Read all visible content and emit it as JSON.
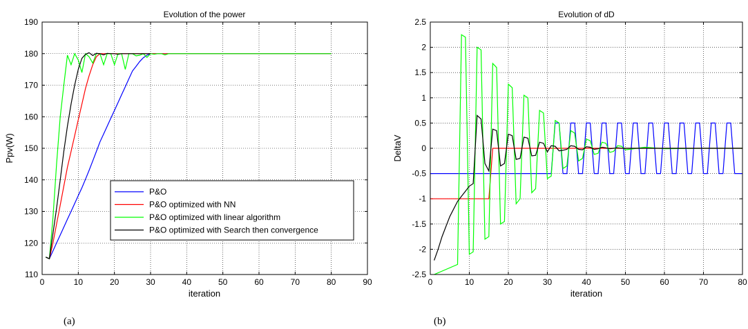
{
  "chart_data": [
    {
      "type": "line",
      "title": "Evolution of the power",
      "xlabel": "iteration",
      "ylabel": "Ppv(W)",
      "xlim": [
        0,
        90
      ],
      "ylim": [
        110,
        190
      ],
      "xticks": [
        0,
        10,
        20,
        30,
        40,
        50,
        60,
        70,
        80,
        90
      ],
      "yticks": [
        110,
        120,
        130,
        140,
        150,
        160,
        170,
        180,
        190
      ],
      "grid": true,
      "legend_position": "bottom-right",
      "series": [
        {
          "name": "P&O",
          "color": "#0000ff",
          "x": [
            1,
            2,
            3,
            4,
            5,
            6,
            7,
            8,
            9,
            10,
            11,
            12,
            13,
            14,
            15,
            16,
            17,
            18,
            19,
            20,
            21,
            22,
            23,
            24,
            25,
            26,
            27,
            28,
            29,
            30,
            31,
            32,
            33,
            34,
            35,
            36,
            37,
            38,
            39,
            40,
            50,
            60,
            70,
            80
          ],
          "y": [
            115.5,
            115,
            117.5,
            120,
            122.5,
            125,
            127.5,
            130,
            132.5,
            135,
            137.5,
            140.2,
            143,
            146,
            149,
            152,
            154.5,
            157,
            159.5,
            162,
            164.5,
            167,
            169.5,
            172,
            174.5,
            176,
            177.5,
            178.7,
            179.5,
            180,
            180,
            180,
            180,
            180,
            180,
            180,
            180,
            180,
            180,
            180,
            180,
            180,
            180,
            180
          ]
        },
        {
          "name": "P&O optimized with NN",
          "color": "#ff0000",
          "x": [
            1,
            2,
            3,
            4,
            5,
            6,
            7,
            8,
            9,
            10,
            11,
            12,
            13,
            14,
            15,
            16,
            17,
            18,
            20,
            30,
            40,
            50,
            60,
            70,
            80
          ],
          "y": [
            115.5,
            115,
            120,
            126,
            132,
            138,
            144,
            149,
            154,
            159,
            164,
            169,
            173,
            176.5,
            179,
            180,
            180,
            180,
            180,
            180,
            180,
            180,
            180,
            180,
            180
          ]
        },
        {
          "name": "P&O optimized with linear algorithm",
          "color": "#00ff00",
          "x": [
            1,
            2,
            3,
            4,
            5,
            6,
            7,
            8,
            9,
            10,
            11,
            12,
            13,
            14,
            15,
            16,
            17,
            18,
            19,
            20,
            21,
            22,
            23,
            24,
            25,
            26,
            27,
            28,
            29,
            30,
            31,
            32,
            33,
            34,
            35,
            36,
            37,
            38,
            40,
            50,
            60,
            70,
            80
          ],
          "y": [
            115.5,
            115,
            128,
            145,
            160,
            170,
            179.5,
            176.5,
            180,
            178,
            174,
            180,
            179,
            177,
            180,
            180,
            176.5,
            180,
            180,
            176.5,
            180,
            180,
            175,
            180,
            180,
            179.3,
            179.5,
            180,
            178.8,
            180,
            179.8,
            180,
            180,
            179.6,
            180,
            180,
            180,
            180,
            180,
            180,
            180,
            180,
            180
          ]
        },
        {
          "name": "P&O optimized with Search then convergence",
          "color": "#000000",
          "x": [
            1,
            2,
            3,
            4,
            5,
            6,
            7,
            8,
            9,
            10,
            11,
            12,
            13,
            14,
            15,
            16,
            17,
            18,
            19,
            20,
            21,
            22,
            23,
            24,
            25,
            30
          ],
          "y": [
            115.5,
            115,
            123,
            131,
            140,
            149,
            157,
            164,
            170,
            175,
            178.5,
            179.8,
            180.3,
            179.4,
            180.1,
            180,
            179.6,
            180.1,
            180,
            180,
            179.8,
            180,
            180,
            180,
            180,
            180
          ]
        }
      ]
    },
    {
      "type": "line",
      "title": "Evolution of dD",
      "xlabel": "iteration",
      "ylabel": "DeltaV",
      "xlim": [
        0,
        80
      ],
      "ylim": [
        -2.5,
        2.5
      ],
      "xticks": [
        0,
        10,
        20,
        30,
        40,
        50,
        60,
        70,
        80
      ],
      "yticks": [
        -2.5,
        -2,
        -1.5,
        -1,
        -0.5,
        0,
        0.5,
        1,
        1.5,
        2,
        2.5
      ],
      "grid": true,
      "series": [
        {
          "name": "",
          "color": "#0000ff",
          "x": [
            0,
            31,
            32,
            33,
            34,
            35,
            36,
            37,
            38,
            39,
            40,
            41,
            42,
            43,
            44,
            45,
            46,
            47,
            48,
            49,
            50,
            51,
            52,
            53,
            54,
            55,
            56,
            57,
            58,
            59,
            60,
            61,
            62,
            63,
            64,
            65,
            66,
            67,
            68,
            69,
            70,
            71,
            72,
            73,
            74,
            75,
            76,
            77,
            78,
            79,
            80
          ],
          "y": [
            -0.5,
            -0.5,
            0.5,
            0.5,
            -0.5,
            -0.5,
            0.5,
            0.5,
            -0.5,
            -0.5,
            0.5,
            0.5,
            -0.5,
            -0.5,
            0.5,
            0.5,
            -0.5,
            -0.5,
            0.5,
            0.5,
            -0.5,
            -0.5,
            0.5,
            0.5,
            -0.5,
            -0.5,
            0.5,
            0.5,
            -0.5,
            -0.5,
            0.5,
            0.5,
            -0.5,
            -0.5,
            0.5,
            0.5,
            -0.5,
            -0.5,
            0.5,
            0.5,
            -0.5,
            -0.5,
            0.5,
            0.5,
            -0.5,
            -0.5,
            0.5,
            0.5,
            -0.5,
            -0.5,
            -0.5
          ]
        },
        {
          "name": "",
          "color": "#ff0000",
          "x": [
            0,
            15,
            15.5,
            16,
            30,
            40,
            50,
            60,
            70,
            80
          ],
          "y": [
            -1,
            -1,
            -0.5,
            0,
            0,
            0,
            0,
            0,
            0,
            0
          ]
        },
        {
          "name": "",
          "color": "#00ff00",
          "x": [
            1,
            7,
            8,
            9,
            10,
            11,
            12,
            13,
            14,
            15,
            16,
            17,
            18,
            19,
            20,
            21,
            22,
            23,
            24,
            25,
            26,
            27,
            28,
            29,
            30,
            31,
            32,
            33,
            34,
            35,
            36,
            37,
            38,
            39,
            40,
            41,
            42,
            43,
            44,
            45,
            46,
            47,
            48,
            49,
            50,
            55,
            60,
            70,
            80
          ],
          "y": [
            -2.5,
            -2.3,
            2.25,
            2.2,
            -2.1,
            -2.05,
            2.0,
            1.95,
            -1.8,
            -1.75,
            1.68,
            1.6,
            -1.5,
            -1.45,
            1.27,
            1.2,
            -1.1,
            -1.0,
            1.05,
            1.0,
            -0.88,
            -0.8,
            0.75,
            0.7,
            -0.6,
            -0.55,
            0.55,
            0.5,
            -0.4,
            -0.35,
            0.35,
            0.3,
            -0.25,
            -0.2,
            0.18,
            0.15,
            -0.12,
            -0.1,
            0.12,
            0.1,
            -0.08,
            -0.06,
            0.05,
            0.04,
            -0.03,
            0.02,
            -0.01,
            0.0,
            0.0
          ]
        },
        {
          "name": "",
          "color": "#000000",
          "x": [
            1,
            2,
            3,
            4,
            5,
            6,
            7,
            8,
            9,
            10,
            11,
            12,
            13,
            14,
            15,
            16,
            17,
            18,
            19,
            20,
            21,
            22,
            23,
            24,
            25,
            26,
            27,
            28,
            29,
            30,
            31,
            32,
            33,
            34,
            35,
            36,
            37,
            38,
            39,
            40,
            41,
            42,
            43,
            44,
            45,
            46,
            47,
            48,
            49,
            50,
            52,
            55,
            60,
            70,
            80
          ],
          "y": [
            -2.22,
            -2.0,
            -1.75,
            -1.55,
            -1.35,
            -1.2,
            -1.05,
            -0.95,
            -0.85,
            -0.75,
            -0.7,
            0.65,
            0.58,
            -0.3,
            -0.45,
            0.38,
            0.35,
            -0.35,
            -0.3,
            0.28,
            0.25,
            -0.22,
            -0.2,
            0.22,
            0.2,
            -0.15,
            -0.14,
            0.12,
            0.1,
            -0.07,
            0.05,
            0.04,
            -0.05,
            -0.04,
            -0.02,
            0.05,
            0.04,
            -0.02,
            -0.03,
            0.03,
            0.02,
            -0.02,
            -0.01,
            0.02,
            0.01,
            -0.01,
            0.0,
            0.01,
            0.0,
            0.0,
            0.0,
            0.0,
            0.0,
            0.0,
            0.0
          ]
        }
      ]
    }
  ],
  "captions": [
    "(a)",
    "(b)"
  ]
}
